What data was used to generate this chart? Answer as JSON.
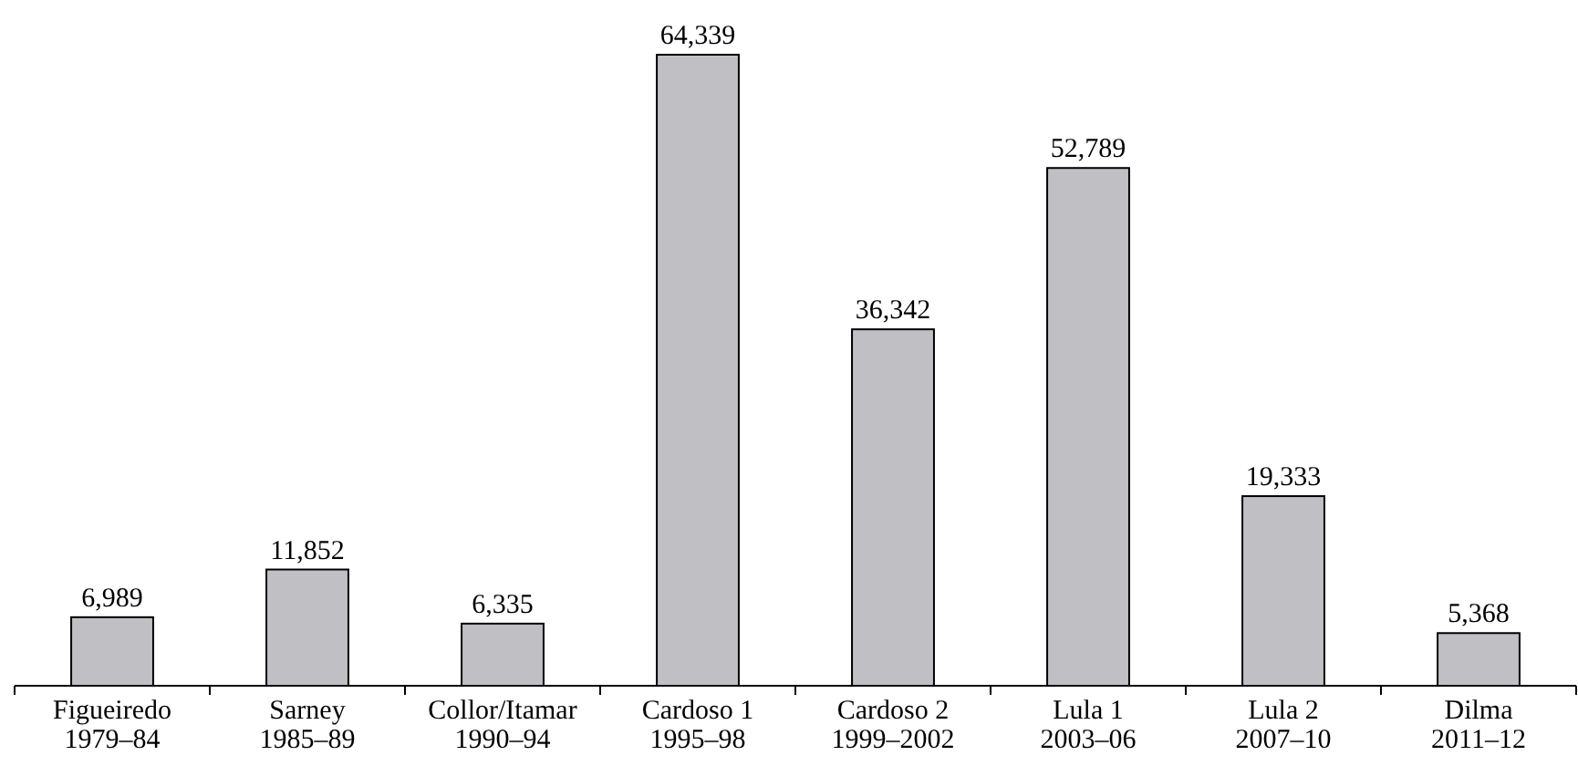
{
  "chart_data": {
    "type": "bar",
    "categories": [
      "Figueiredo\n1979–84",
      "Sarney\n1985–89",
      "Collor/Itamar\n1990–94",
      "Cardoso 1\n1995–98",
      "Cardoso 2\n1999–2002",
      "Lula 1\n2003–06",
      "Lula 2\n2007–10",
      "Dilma\n2011–12"
    ],
    "values": [
      6989,
      11852,
      6335,
      64339,
      36342,
      52789,
      19333,
      5368
    ],
    "color": "#c0c0c4",
    "data_labels": true,
    "value_labels": [
      "6,989",
      "11,852",
      "6,335",
      "64,339",
      "36,342",
      "52,789",
      "19,333",
      "5,368"
    ]
  }
}
